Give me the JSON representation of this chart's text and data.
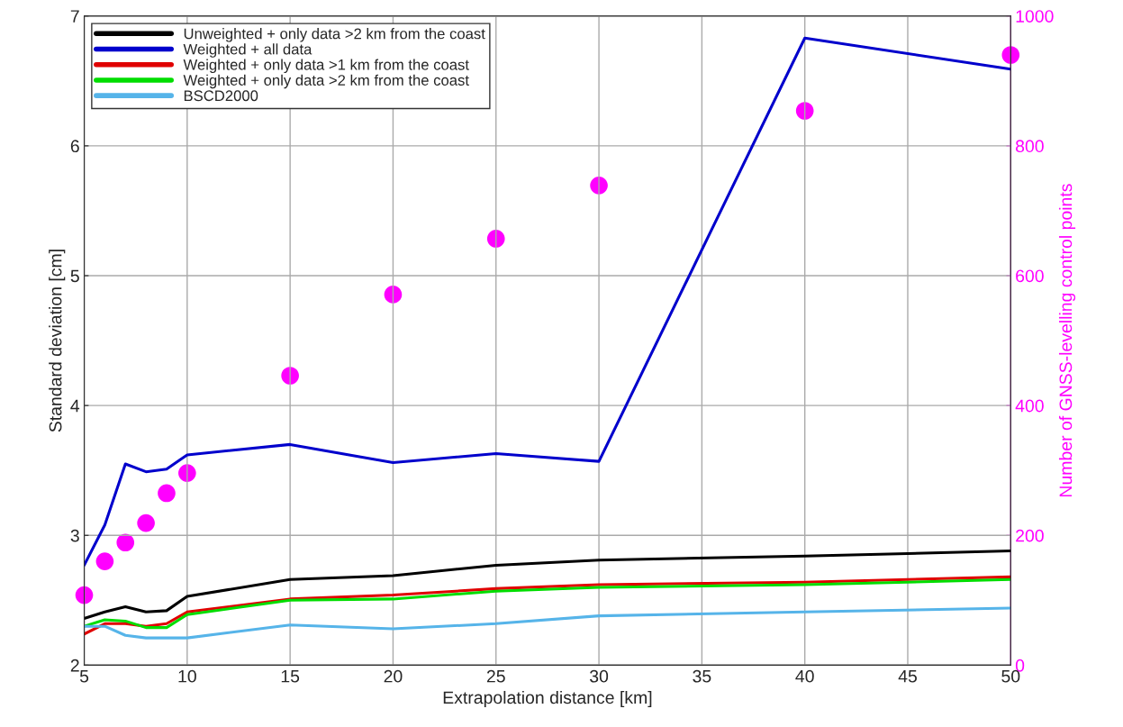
{
  "chart_data": {
    "type": "line",
    "xlabel": "Extrapolation distance [km]",
    "ylabel": "Standard deviation [cm]",
    "y2label": "Number of GNSS-levelling control points",
    "x": [
      5,
      6,
      7,
      8,
      9,
      10,
      15,
      20,
      25,
      30,
      40,
      50
    ],
    "series": [
      {
        "name": "Unweighted + only data >2 km from the coast",
        "color": "#000000",
        "values": [
          2.36,
          2.41,
          2.45,
          2.41,
          2.42,
          2.53,
          2.66,
          2.69,
          2.77,
          2.81,
          2.84,
          2.88
        ]
      },
      {
        "name": "Weighted + all data",
        "color": "#0000cc",
        "values": [
          2.77,
          3.08,
          3.55,
          3.49,
          3.51,
          3.62,
          3.7,
          3.56,
          3.63,
          3.57,
          6.83,
          6.59
        ]
      },
      {
        "name": "Weighted + only data >1 km from the coast",
        "color": "#e00000",
        "values": [
          2.24,
          2.32,
          2.32,
          2.3,
          2.32,
          2.41,
          2.51,
          2.54,
          2.59,
          2.62,
          2.64,
          2.68
        ]
      },
      {
        "name": "Weighted + only data >2 km from the coast",
        "color": "#00dd00",
        "values": [
          2.3,
          2.35,
          2.34,
          2.29,
          2.29,
          2.39,
          2.5,
          2.51,
          2.57,
          2.6,
          2.62,
          2.66
        ]
      },
      {
        "name": "BSCD2000",
        "color": "#56b4e9",
        "values": [
          2.3,
          2.3,
          2.23,
          2.21,
          2.21,
          2.21,
          2.31,
          2.28,
          2.32,
          2.38,
          2.41,
          2.44
        ]
      },
      {
        "type": "scatter",
        "axis": "y2",
        "color": "#ff00ff",
        "marker": "circle",
        "values": [
          108,
          160,
          189,
          219,
          265,
          296,
          446,
          571,
          657,
          739,
          854,
          940
        ]
      }
    ],
    "xlim": [
      5,
      50
    ],
    "xticks": [
      5,
      10,
      15,
      20,
      25,
      30,
      35,
      40,
      45,
      50
    ],
    "ylim": [
      2,
      7
    ],
    "yticks": [
      2,
      3,
      4,
      5,
      6,
      7
    ],
    "y2lim": [
      0,
      1000
    ],
    "y2ticks": [
      0,
      200,
      400,
      600,
      800,
      1000
    ],
    "grid": true,
    "legend": "top left"
  }
}
